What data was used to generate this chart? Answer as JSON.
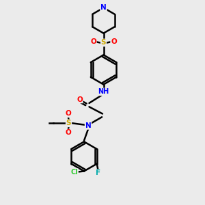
{
  "background_color": "#ebebeb",
  "bond_color": "#000000",
  "bond_width": 1.8,
  "atom_colors": {
    "N": "#0000ff",
    "O": "#ff0000",
    "S": "#ccaa00",
    "Cl": "#33cc33",
    "F": "#00aaaa",
    "C": "#000000",
    "H": "#336666"
  },
  "figsize": [
    3.0,
    3.0
  ],
  "dpi": 100
}
